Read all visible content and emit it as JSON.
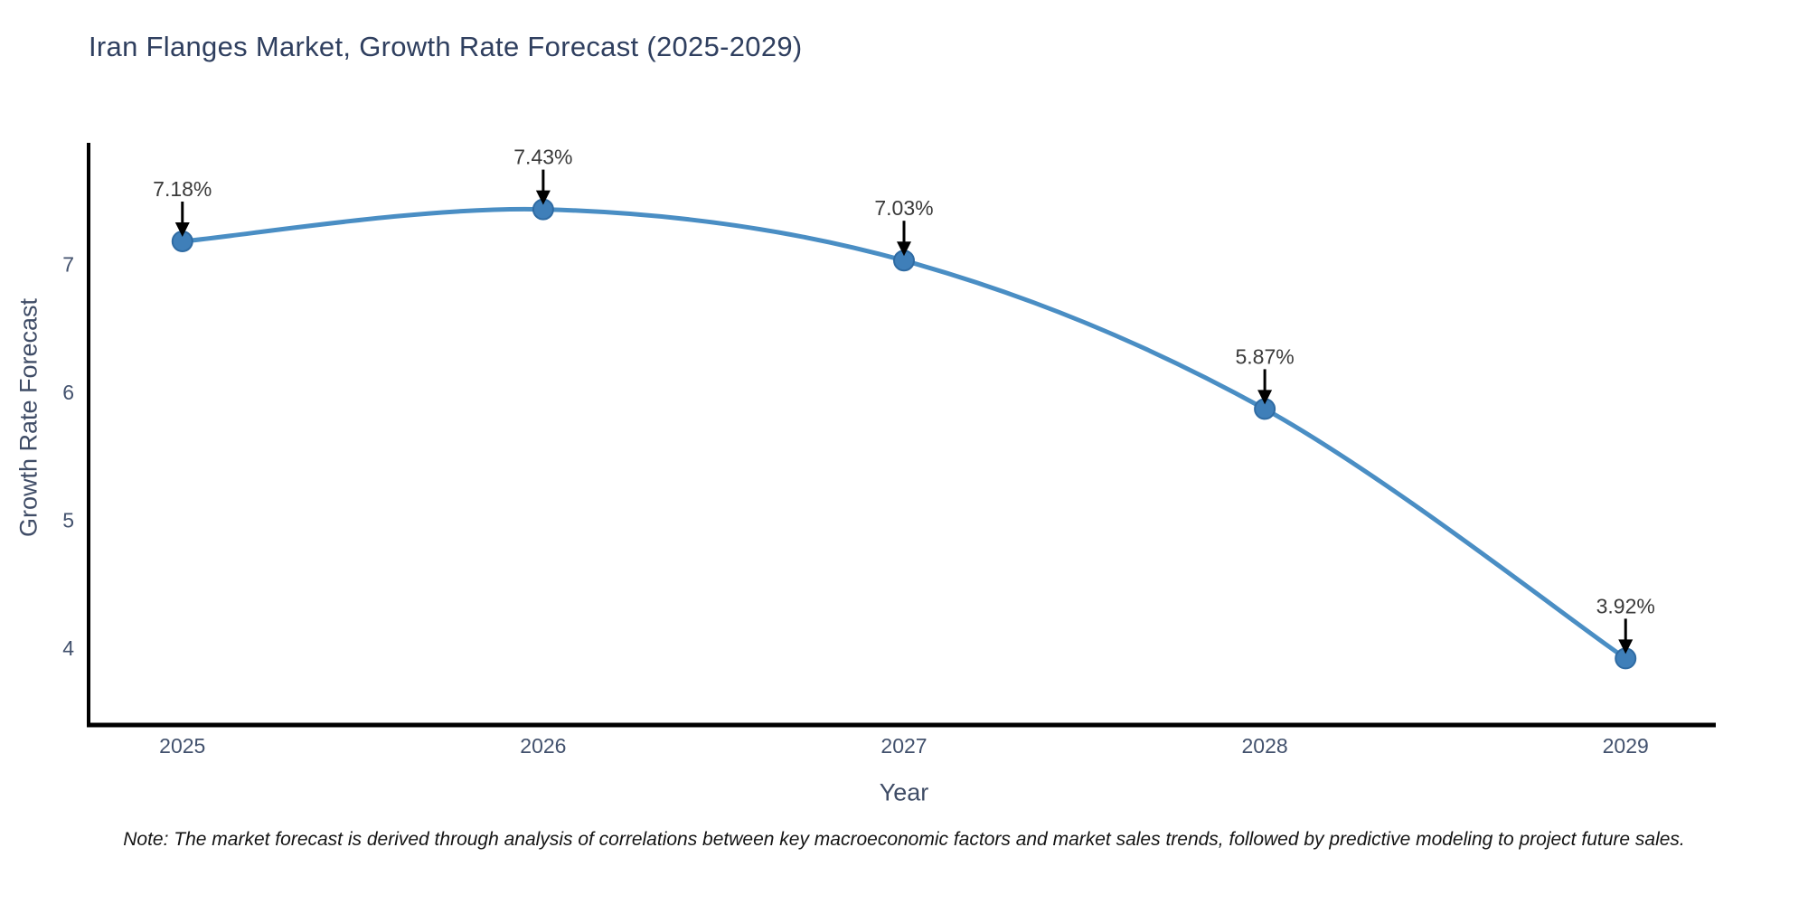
{
  "chart_data": {
    "type": "line",
    "title": "Iran Flanges Market, Growth Rate Forecast (2025-2029)",
    "xlabel": "Year",
    "ylabel": "Growth Rate Forecast",
    "note": "Note: The market forecast is derived through analysis of correlations between key macroeconomic factors and market sales trends, followed by predictive modeling to project future sales.",
    "x": [
      2025,
      2026,
      2027,
      2028,
      2029
    ],
    "values": [
      7.18,
      7.43,
      7.03,
      5.87,
      3.92
    ],
    "point_labels": [
      "7.18%",
      "7.43%",
      "7.03%",
      "5.87%",
      "3.92%"
    ],
    "xticks": [
      "2025",
      "2026",
      "2027",
      "2028",
      "2029"
    ],
    "yticks": [
      4,
      5,
      6,
      7
    ],
    "xlim": [
      2024.74,
      2029.25
    ],
    "ylim": [
      3.4,
      7.95
    ],
    "grid": false,
    "legend": "none",
    "colors": {
      "line": "#4a8ec4",
      "marker_fill": "#3f7fb9",
      "marker_edge": "#2f6ba3",
      "annotation_text": "#3a3a3a",
      "arrow": "#000000",
      "spine": "#000000",
      "tick_label": "#42516d"
    }
  }
}
